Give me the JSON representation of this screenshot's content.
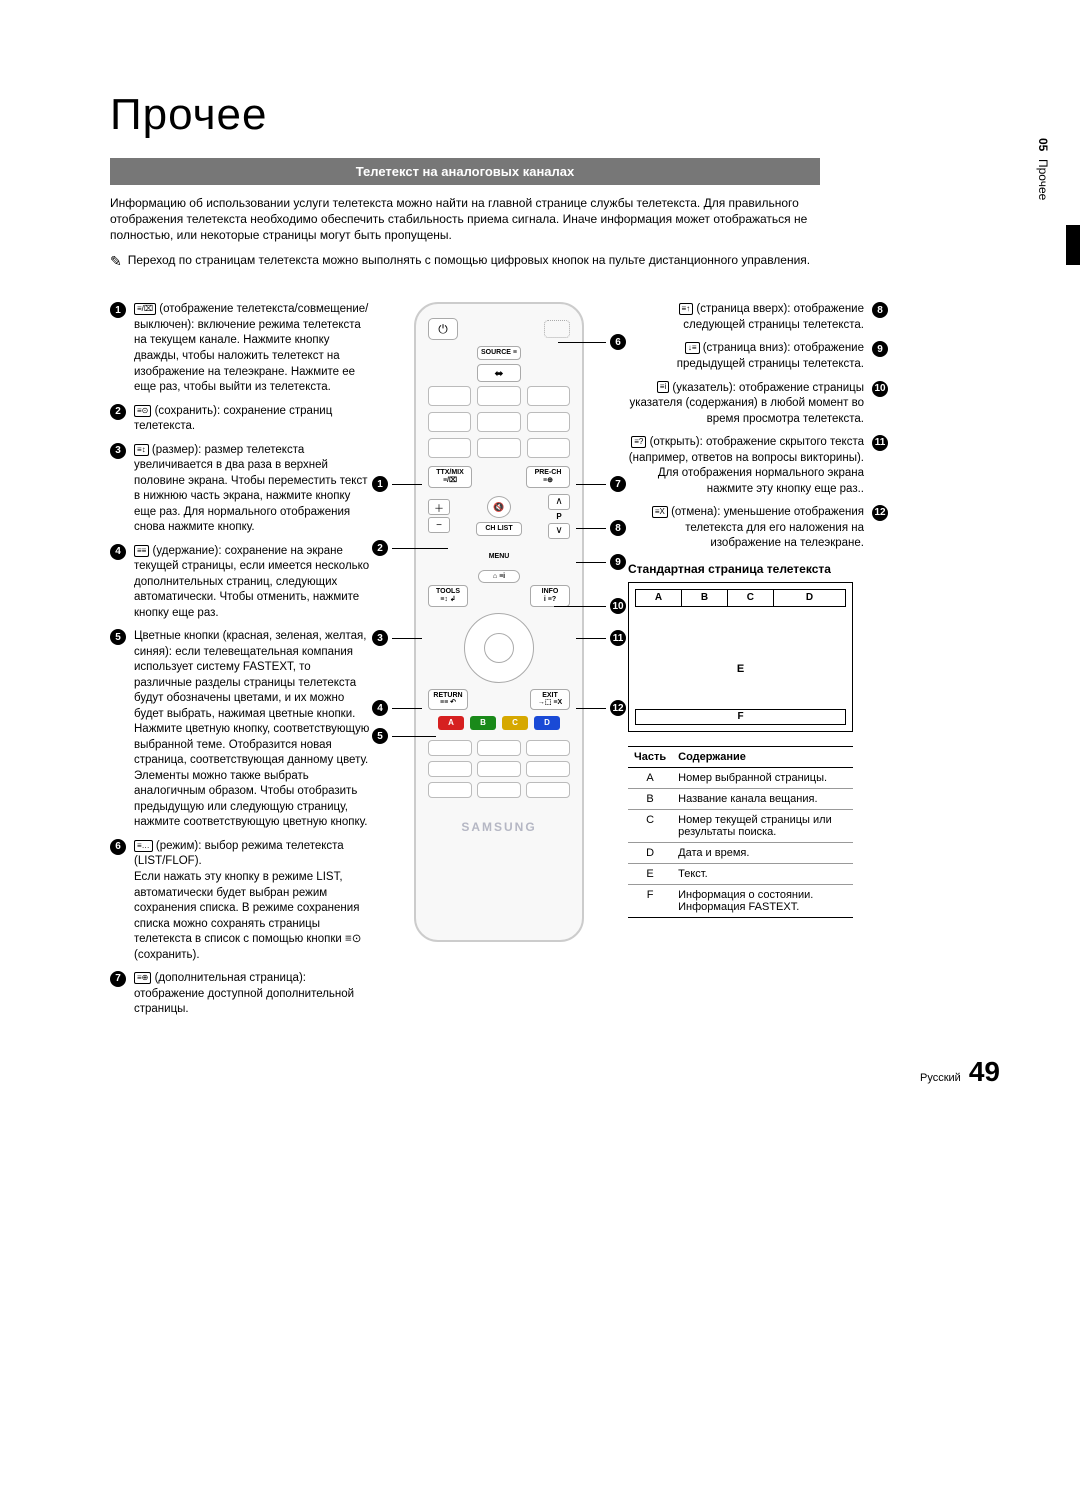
{
  "chapter_title": "Прочее",
  "section_title": "Телетекст на аналоговых каналах",
  "side_tab": {
    "num": "05",
    "label": "Прочее"
  },
  "intro": "Информацию об использовании услуги телетекста можно найти на главной странице службы телетекста. Для правильного отображения телетекста необходимо обеспечить стабильность приема сигнала. Иначе информация может отображаться не полностью, или некоторые страницы могут быть пропущены.",
  "note_icon": "✎",
  "note": "Переход по страницам телетекста можно выполнять с помощью цифровых кнопок на пульте дистанционного управления.",
  "left_items": [
    {
      "n": "1",
      "icon": "≡/⌧",
      "text": " (отображение телетекста/совмещение/выключен): включение режима телетекста на текущем канале. Нажмите кнопку дважды, чтобы наложить телетекст на изображение на телеэкране. Нажмите ее еще раз, чтобы выйти из телетекста."
    },
    {
      "n": "2",
      "icon": "≡⊙",
      "text": " (сохранить): сохранение страниц телетекста."
    },
    {
      "n": "3",
      "icon": "≡↕",
      "text": " (размер): размер телетекста увеличивается в два раза в верхней половине экрана. Чтобы переместить текст в нижнюю часть экрана, нажмите кнопку еще раз. Для нормального отображения снова нажмите кнопку."
    },
    {
      "n": "4",
      "icon": "≡≡",
      "text": " (удержание): сохранение на экране текущей страницы, если имеется несколько дополнительных страниц, следующих автоматически. Чтобы отменить, нажмите кнопку еще раз."
    },
    {
      "n": "5",
      "icon": "",
      "text": "Цветные кнопки (красная, зеленая, желтая, синяя): если телевещательная компания использует систему FASTEXT, то различные разделы страницы телетекста будут обозначены цветами, и их можно будет выбрать, нажимая цветные кнопки. Нажмите цветную кнопку, соответствующую выбранной теме. Отобразится новая страница, соответствующая данному цвету. Элементы можно также выбрать аналогичным образом. Чтобы отобразить предыдущую или следующую страницу, нажмите соответствующую цветную кнопку."
    },
    {
      "n": "6",
      "icon": "≡…",
      "text": " (режим): выбор режима телетекста (LIST/FLOF).\nЕсли нажать эту кнопку в режиме LIST, автоматически будет выбран режим сохранения списка. В режиме сохранения списка можно сохранять страницы телетекста в список с помощью кнопки ≡⊙ (сохранить)."
    },
    {
      "n": "7",
      "icon": "≡⊕",
      "text": " (дополнительная страница): отображение доступной дополнительной страницы."
    }
  ],
  "right_items": [
    {
      "n": "8",
      "icon": "≡↑",
      "text": " (страница вверх): отображение следующей страницы телетекста."
    },
    {
      "n": "9",
      "icon": "↓≡",
      "text": " (страница вниз): отображение предыдущей страницы телетекста."
    },
    {
      "n": "10",
      "icon": "≡i",
      "text": " (указатель): отображение страницы указателя (содержания) в любой момент во время просмотра телетекста."
    },
    {
      "n": "11",
      "icon": "≡?",
      "text": " (открыть): отображение скрытого текста (например, ответов на вопросы викторины). Для отображения нормального экрана нажмите эту кнопку еще раз.."
    },
    {
      "n": "12",
      "icon": "≡X",
      "text": " (отмена): уменьшение отображения телетекста для его наложения на изображение на телеэкране."
    }
  ],
  "remote": {
    "source": "SOURCE ≡",
    "ttx": "TTX/MIX",
    "prech": "PRE-CH",
    "chlist": "CH LIST",
    "menu": "MENU",
    "guide": "⌂ ≡i",
    "tools": "TOOLS",
    "info": "INFO",
    "return": "RETURN",
    "exit": "EXIT",
    "p_label": "P",
    "brand": "SAMSUNG",
    "colors": {
      "a": "A",
      "b": "B",
      "c": "C",
      "d": "D",
      "red": "#d62020",
      "green": "#1a8a1a",
      "yellow": "#d6a800",
      "blue": "#1a4ad6"
    }
  },
  "callouts_left": {
    "1": "1",
    "2": "2",
    "3": "3",
    "4": "4",
    "5": "5"
  },
  "callouts_right": {
    "6": "6",
    "7": "7",
    "8": "8",
    "9": "9",
    "10": "10",
    "11": "11",
    "12": "12"
  },
  "std_page_title": "Стандартная страница телетекста",
  "std_labels": {
    "A": "A",
    "B": "B",
    "C": "C",
    "D": "D",
    "E": "E",
    "F": "F"
  },
  "table": {
    "head_part": "Часть",
    "head_content": "Содержание",
    "rows": [
      {
        "p": "A",
        "c": "Номер выбранной страницы."
      },
      {
        "p": "B",
        "c": "Название канала вещания."
      },
      {
        "p": "C",
        "c": "Номер текущей страницы или результаты поиска."
      },
      {
        "p": "D",
        "c": "Дата и время."
      },
      {
        "p": "E",
        "c": "Текст."
      },
      {
        "p": "F",
        "c": "Информация о состоянии. Информация FASTEXT."
      }
    ]
  },
  "footer": {
    "lang": "Русский",
    "page": "49"
  }
}
